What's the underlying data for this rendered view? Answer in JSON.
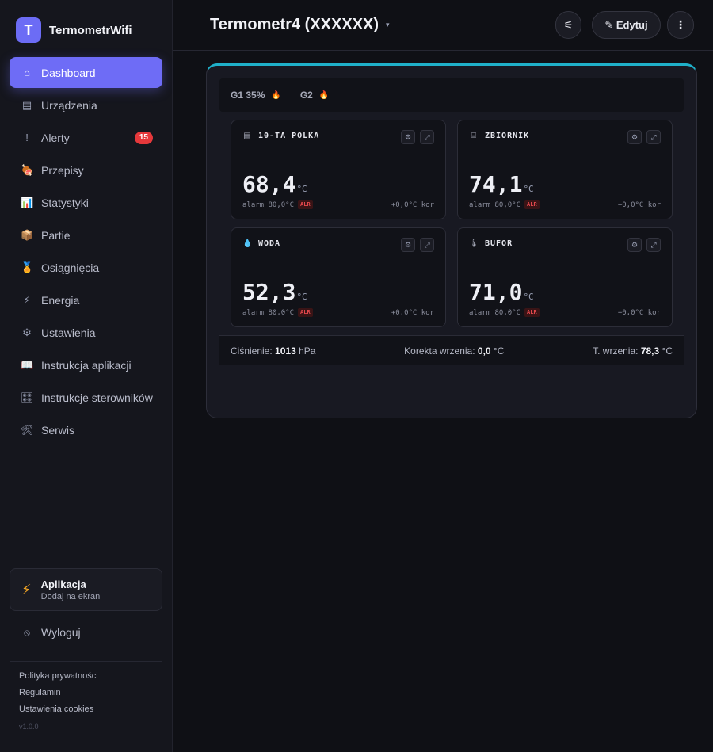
{
  "brand": {
    "logo_letter": "T",
    "name": "TermometrWifi",
    "accent": "#6e6cf6"
  },
  "nav": {
    "items": [
      {
        "label": "Dashboard",
        "icon": "⌂",
        "icon_name": "home-icon",
        "active": true
      },
      {
        "label": "Urządzenia",
        "icon": "▤",
        "icon_name": "devices-icon"
      },
      {
        "label": "Alerty",
        "icon": "!",
        "icon_name": "alert-icon",
        "badge": "15"
      },
      {
        "label": "Przepisy",
        "icon": "🍖",
        "icon_name": "recipes-icon"
      },
      {
        "label": "Statystyki",
        "icon": "📊",
        "icon_name": "stats-icon"
      },
      {
        "label": "Partie",
        "icon": "📦",
        "icon_name": "package-icon"
      },
      {
        "label": "Osiągnięcia",
        "icon": "🏅",
        "icon_name": "medal-icon"
      },
      {
        "label": "Energia",
        "icon": "⚡",
        "icon_name": "energy-icon"
      },
      {
        "label": "Ustawienia",
        "icon": "⚙",
        "icon_name": "gear-icon"
      },
      {
        "label": "Instrukcja aplikacji",
        "icon": "📖",
        "icon_name": "book-icon"
      },
      {
        "label": "Instrukcje sterowników",
        "icon": "🎛",
        "icon_name": "controller-icon"
      },
      {
        "label": "Serwis",
        "icon": "🛠",
        "icon_name": "tools-icon"
      }
    ]
  },
  "app_card": {
    "title": "Aplikacja",
    "subtitle": "Dodaj na ekran",
    "icon": "⚡"
  },
  "logout": {
    "label": "Wyloguj",
    "icon": "⦸"
  },
  "footer": {
    "links": [
      "Polityka prywatności",
      "Regulamin",
      "Ustawienia cookies"
    ],
    "version": "v1.0.0"
  },
  "header": {
    "title": "Termometr4 (XXXXXX)",
    "caret": "▾",
    "filter_icon": "⚟",
    "edit_label": "✎ Edytuj",
    "more_icon": "⋮"
  },
  "panel": {
    "accent": "#1fb0c9",
    "groups": [
      {
        "label": "G1 35%",
        "icon": "🔥"
      },
      {
        "label": "G2",
        "icon": "🔥"
      }
    ],
    "tiles": [
      {
        "name": "10-TA POLKA",
        "icon": "▤",
        "icon_name": "shelf-icon",
        "value": "68,4",
        "unit": "°C",
        "alarm": "alarm 80,0°C",
        "alr": "ALR",
        "correction": "+0,0°C kor"
      },
      {
        "name": "ZBIORNIK",
        "icon": "⌸",
        "icon_name": "tank-icon",
        "value": "74,1",
        "unit": "°C",
        "alarm": "alarm 80,0°C",
        "alr": "ALR",
        "correction": "+0,0°C kor"
      },
      {
        "name": "WODA",
        "icon": "💧",
        "icon_name": "water-drop-icon",
        "value": "52,3",
        "unit": "°C",
        "alarm": "alarm 80,0°C",
        "alr": "ALR",
        "correction": "+0,0°C kor"
      },
      {
        "name": "BUFOR",
        "icon": "🌡",
        "icon_name": "thermometer-icon",
        "value": "71,0",
        "unit": "°C",
        "alarm": "alarm 80,0°C",
        "alr": "ALR",
        "correction": "+0,0°C kor"
      }
    ],
    "info": {
      "pressure_label": "Ciśnienie:",
      "pressure_value": "1013",
      "pressure_unit": "hPa",
      "boil_corr_label": "Korekta wrzenia:",
      "boil_corr_value": "0,0",
      "boil_corr_unit": "°C",
      "boil_temp_label": "T. wrzenia:",
      "boil_temp_value": "78,3",
      "boil_temp_unit": "°C"
    }
  }
}
